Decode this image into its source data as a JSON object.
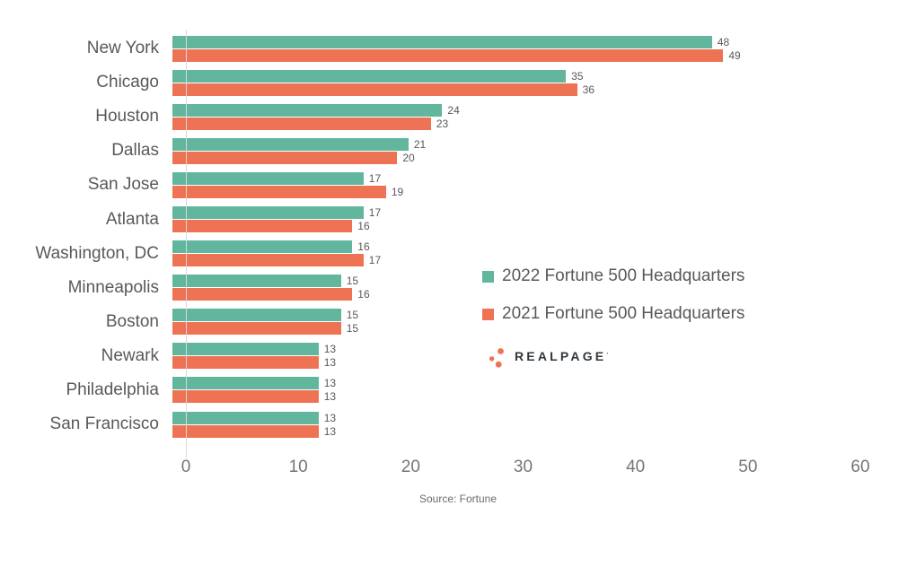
{
  "chart_data": {
    "type": "bar",
    "orientation": "horizontal",
    "categories": [
      "New York",
      "Chicago",
      "Houston",
      "Dallas",
      "San Jose",
      "Atlanta",
      "Washington, DC",
      "Minneapolis",
      "Boston",
      "Newark",
      "Philadelphia",
      "San Francisco"
    ],
    "series": [
      {
        "name": "2022 Fortune 500 Headquarters",
        "color": "#62b69e",
        "values": [
          48,
          35,
          24,
          21,
          17,
          17,
          16,
          15,
          15,
          13,
          13,
          13
        ]
      },
      {
        "name": "2021 Fortune 500 Headquarters",
        "color": "#ee7354",
        "values": [
          49,
          36,
          23,
          20,
          19,
          16,
          17,
          16,
          15,
          13,
          13,
          13
        ]
      }
    ],
    "title": "",
    "xlabel": "",
    "ylabel": "",
    "xlim": [
      0,
      60
    ],
    "xticks": [
      0,
      10,
      20,
      30,
      40,
      50,
      60
    ],
    "grid": false,
    "value_labels": true,
    "legend_position": "center-right"
  },
  "legend": {
    "items": [
      {
        "label": "2022 Fortune 500 Headquarters",
        "color": "#62b69e"
      },
      {
        "label": "2021 Fortune 500 Headquarters",
        "color": "#ee7354"
      }
    ]
  },
  "logo": {
    "text": "REALPAGE",
    "mark": "’",
    "dot_color": "#ee7354",
    "text_color": "#31373c"
  },
  "source": "Source: Fortune",
  "colors": {
    "bar_2022": "#62b69e",
    "bar_2021": "#ee7354",
    "axis_line": "#d9d9d9",
    "category_text": "#595959",
    "tick_text": "#757575",
    "value_text": "#595959",
    "source_text": "#6b6b6b"
  }
}
